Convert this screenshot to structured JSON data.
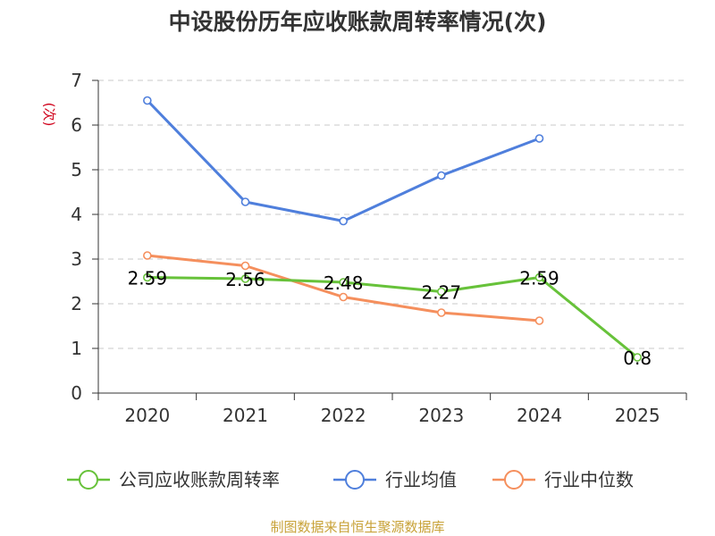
{
  "chart_data": {
    "type": "line",
    "title": "中设股份历年应收账款周转率情况(次)",
    "ylabel": "(次)",
    "xlabel": "",
    "ylim": [
      0,
      7
    ],
    "yticks": [
      "0",
      "1",
      "2",
      "3",
      "4",
      "5",
      "6",
      "7"
    ],
    "categories": [
      "2020",
      "2021",
      "2022",
      "2023",
      "2024",
      "2025"
    ],
    "grid": true,
    "legend_position": "bottom",
    "series": [
      {
        "name": "公司应收账款周转率",
        "color": "#67c23a",
        "values": [
          2.59,
          2.56,
          2.48,
          2.27,
          2.59,
          0.8
        ],
        "labels": [
          "2.59",
          "2.56",
          "2.48",
          "2.27",
          "2.59",
          "0.8"
        ]
      },
      {
        "name": "行业均值",
        "color": "#4f7fdc",
        "values": [
          6.55,
          4.28,
          3.85,
          4.87,
          5.7,
          null
        ]
      },
      {
        "name": "行业中位数",
        "color": "#f58f5d",
        "values": [
          3.08,
          2.85,
          2.15,
          1.8,
          1.62,
          null
        ]
      }
    ],
    "source": "制图数据来自恒生聚源数据库"
  }
}
